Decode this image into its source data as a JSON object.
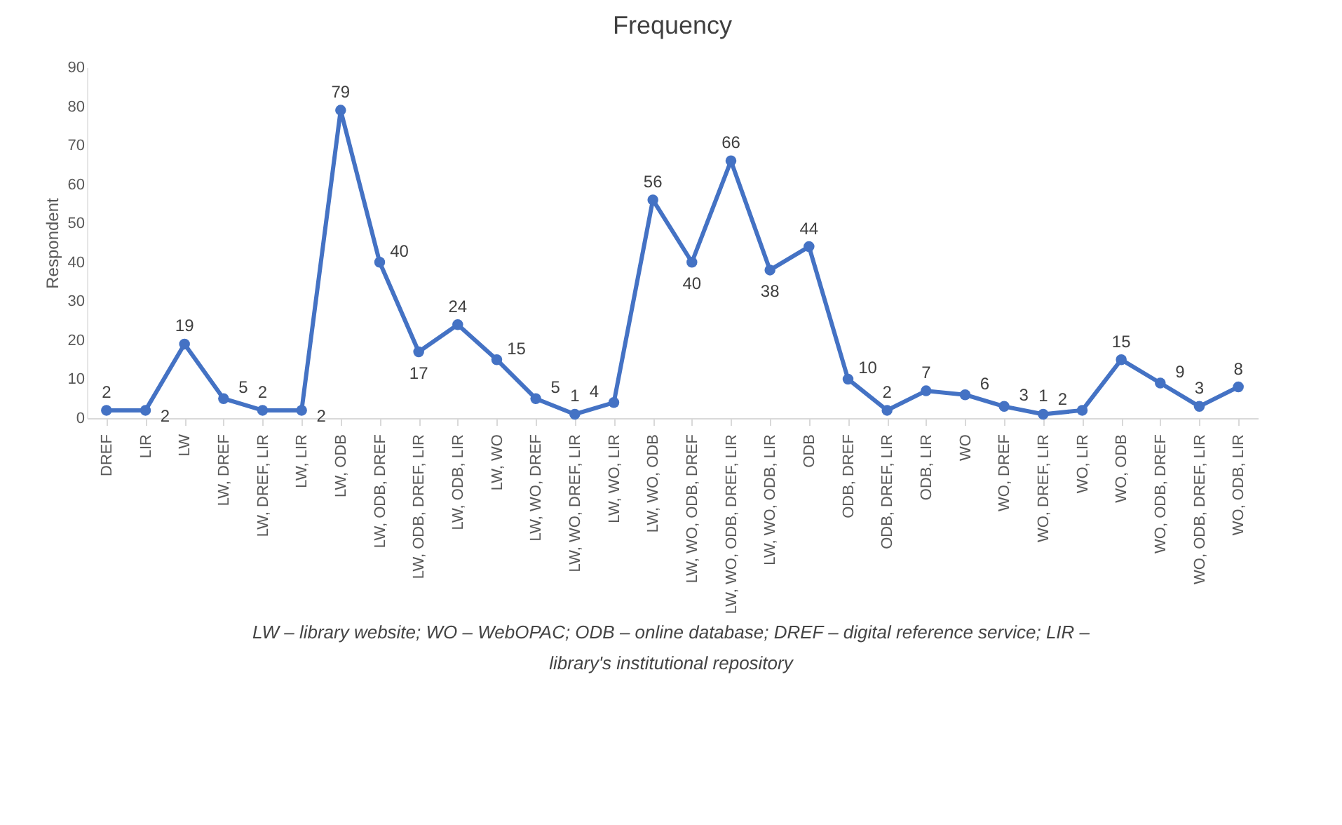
{
  "chart_data": {
    "type": "line",
    "title": "Frequency",
    "ylabel": "Respondent",
    "categories": [
      "DREF",
      "LIR",
      "LW",
      "LW, DREF",
      "LW, DREF, LIR",
      "LW, LIR",
      "LW, ODB",
      "LW, ODB, DREF",
      "LW, ODB, DREF, LIR",
      "LW, ODB, LIR",
      "LW, WO",
      "LW, WO, DREF",
      "LW, WO, DREF, LIR",
      "LW, WO, LIR",
      "LW, WO, ODB",
      "LW, WO, ODB, DREF",
      "LW, WO, ODB, DREF, LIR",
      "LW, WO, ODB, LIR",
      "ODB",
      "ODB, DREF",
      "ODB, DREF, LIR",
      "ODB, LIR",
      "WO",
      "WO, DREF",
      "WO, DREF, LIR",
      "WO, LIR",
      "WO, ODB",
      "WO, ODB, DREF",
      "WO, ODB, DREF, LIR",
      "WO, ODB, LIR"
    ],
    "series": [
      {
        "color": "#4472c4",
        "values": [
          2,
          2,
          19,
          5,
          2,
          2,
          79,
          40,
          17,
          24,
          15,
          5,
          1,
          4,
          56,
          40,
          66,
          38,
          44,
          10,
          2,
          7,
          6,
          3,
          1,
          2,
          15,
          9,
          3,
          8
        ]
      }
    ],
    "ylim": [
      0,
      90
    ],
    "yticks": [
      0,
      10,
      20,
      30,
      40,
      50,
      60,
      70,
      80,
      90
    ],
    "data_labels": true,
    "marker": "circle",
    "grid": false,
    "legend": false,
    "annotations": [
      "LW – library website; WO – WebOPAC; ODB – online database; DREF – digital reference service; LIR – library's institutional repository"
    ]
  }
}
